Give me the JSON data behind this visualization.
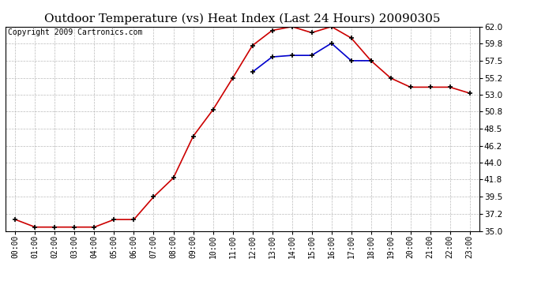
{
  "title": "Outdoor Temperature (vs) Heat Index (Last 24 Hours) 20090305",
  "copyright_text": "Copyright 2009 Cartronics.com",
  "hours": [
    "00:00",
    "01:00",
    "02:00",
    "03:00",
    "04:00",
    "05:00",
    "06:00",
    "07:00",
    "08:00",
    "09:00",
    "10:00",
    "11:00",
    "12:00",
    "13:00",
    "14:00",
    "15:00",
    "16:00",
    "17:00",
    "18:00",
    "19:00",
    "20:00",
    "21:00",
    "22:00",
    "23:00"
  ],
  "temp_red": [
    36.5,
    35.5,
    35.5,
    35.5,
    35.5,
    36.5,
    36.5,
    39.5,
    42.0,
    47.5,
    51.0,
    55.2,
    59.5,
    61.5,
    62.0,
    61.2,
    62.0,
    60.5,
    57.5,
    55.2,
    54.0,
    54.0,
    54.0,
    53.2
  ],
  "heat_blue": [
    null,
    null,
    null,
    null,
    null,
    null,
    null,
    null,
    null,
    null,
    null,
    null,
    56.0,
    58.0,
    58.2,
    58.2,
    59.8,
    57.5,
    57.5,
    null,
    null,
    null,
    null,
    null
  ],
  "ylim": [
    35.0,
    62.0
  ],
  "yticks": [
    35.0,
    37.2,
    39.5,
    41.8,
    44.0,
    46.2,
    48.5,
    50.8,
    53.0,
    55.2,
    57.5,
    59.8,
    62.0
  ],
  "red_color": "#cc0000",
  "blue_color": "#0000cc",
  "bg_color": "#ffffff",
  "grid_color": "#bbbbbb",
  "title_fontsize": 11,
  "copyright_fontsize": 7,
  "xtick_fontsize": 7,
  "ytick_fontsize": 7.5
}
